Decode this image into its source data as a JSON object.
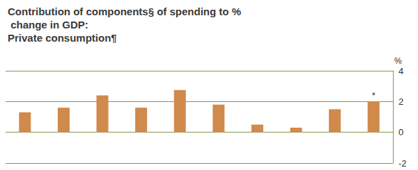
{
  "chart_data": {
    "type": "bar",
    "title": "Contribution of components§ of spending to % change in GDP:",
    "subtitle": "Private consumption¶",
    "y_label": "%",
    "categories": [
      null,
      null,
      null,
      null,
      null,
      null,
      null,
      null,
      null,
      null
    ],
    "values": [
      1.3,
      1.6,
      2.4,
      1.6,
      2.75,
      1.8,
      0.5,
      0.3,
      1.5,
      2.0
    ],
    "color": "#d08a4c",
    "ylim": [
      -2,
      4
    ],
    "yticks": [
      -2,
      0,
      2,
      4
    ],
    "grid": true,
    "annotations": [
      {
        "text": "*",
        "index": 9
      }
    ]
  }
}
